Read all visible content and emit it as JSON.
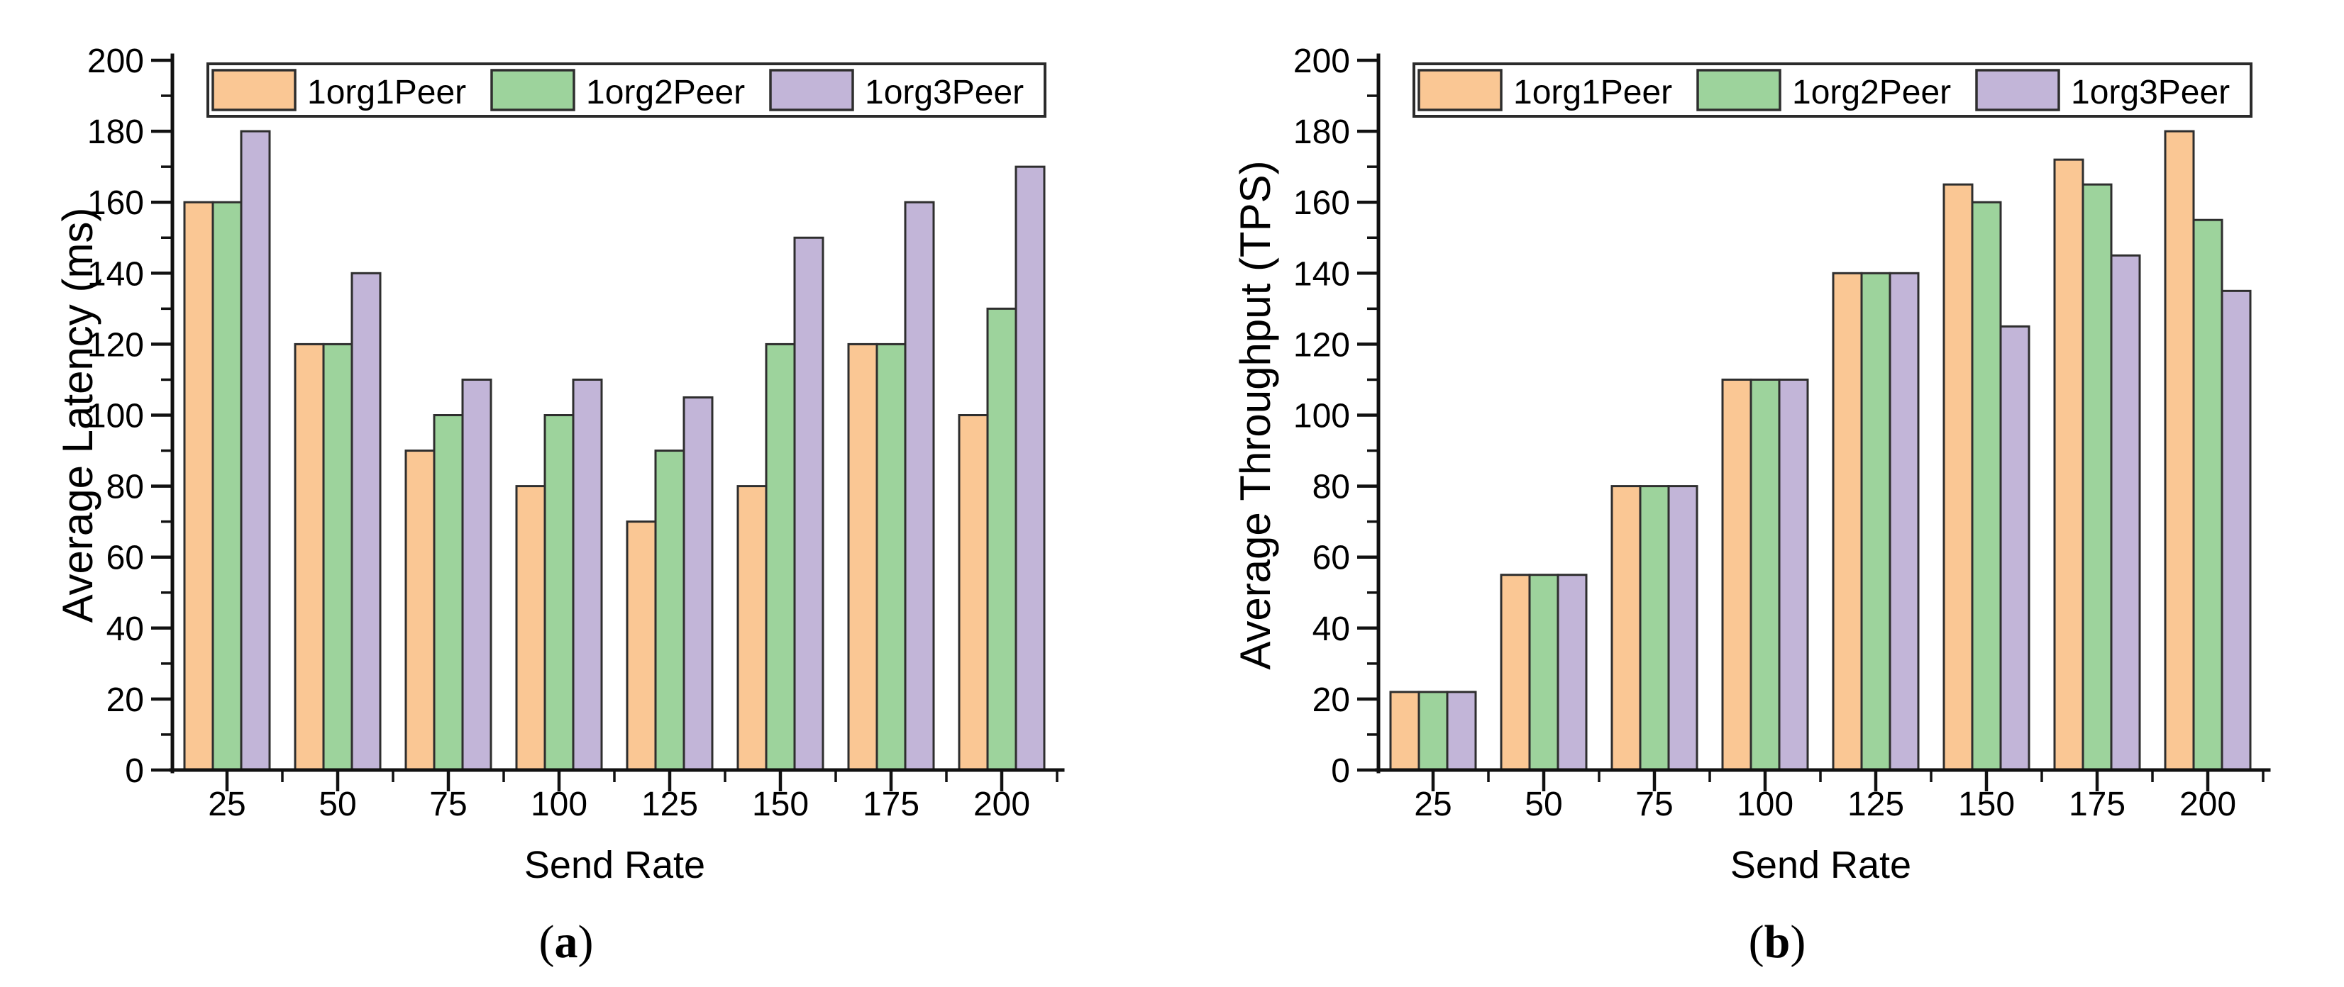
{
  "page": {
    "background": "#ffffff",
    "description_of_pixels": "Two grouped bar charts side by side comparing Hyperledger-style network configurations"
  },
  "styles": {
    "bar_border": "#2e2e2e",
    "axis_color": "#111111",
    "text_color": "#000000",
    "legend_border": "#2b2b2b",
    "legend_bg": "#ffffff"
  },
  "chart_data": [
    {
      "type": "bar",
      "title": "",
      "xlabel": "Send Rate",
      "ylabel": "Average Latency (ms)",
      "categories": [
        "25",
        "50",
        "75",
        "100",
        "125",
        "150",
        "175",
        "200"
      ],
      "series": [
        {
          "name": "1org1Peer",
          "color": "#FAC794",
          "values": [
            160,
            120,
            90,
            80,
            70,
            80,
            120,
            100
          ]
        },
        {
          "name": "1org2Peer",
          "color": "#9DD39C",
          "values": [
            160,
            120,
            100,
            100,
            90,
            120,
            120,
            130
          ]
        },
        {
          "name": "1org3Peer",
          "color": "#C2B5D8",
          "values": [
            180,
            140,
            110,
            110,
            105,
            150,
            160,
            170
          ]
        }
      ],
      "ylim": [
        0,
        200
      ],
      "yticks": [
        0,
        20,
        40,
        60,
        80,
        100,
        120,
        140,
        160,
        180,
        200
      ],
      "ytick_step": 20,
      "yminor_step": 10,
      "grid": false,
      "legend_position": "top-inside",
      "caption": {
        "open": "(",
        "letter": "a",
        "close": ")"
      }
    },
    {
      "type": "bar",
      "title": "",
      "xlabel": "Send Rate",
      "ylabel": "Average Throughput (TPS)",
      "categories": [
        "25",
        "50",
        "75",
        "100",
        "125",
        "150",
        "175",
        "200"
      ],
      "series": [
        {
          "name": "1org1Peer",
          "color": "#FAC794",
          "values": [
            22,
            55,
            80,
            110,
            140,
            165,
            172,
            180
          ]
        },
        {
          "name": "1org2Peer",
          "color": "#9DD39C",
          "values": [
            22,
            55,
            80,
            110,
            140,
            160,
            165,
            155
          ]
        },
        {
          "name": "1org3Peer",
          "color": "#C2B5D8",
          "values": [
            22,
            55,
            80,
            110,
            140,
            125,
            145,
            135
          ]
        }
      ],
      "ylim": [
        0,
        200
      ],
      "yticks": [
        0,
        20,
        40,
        60,
        80,
        100,
        120,
        140,
        160,
        180,
        200
      ],
      "ytick_step": 20,
      "yminor_step": 10,
      "grid": false,
      "legend_position": "top-inside",
      "caption": {
        "open": "(",
        "letter": "b",
        "close": ")"
      }
    }
  ]
}
